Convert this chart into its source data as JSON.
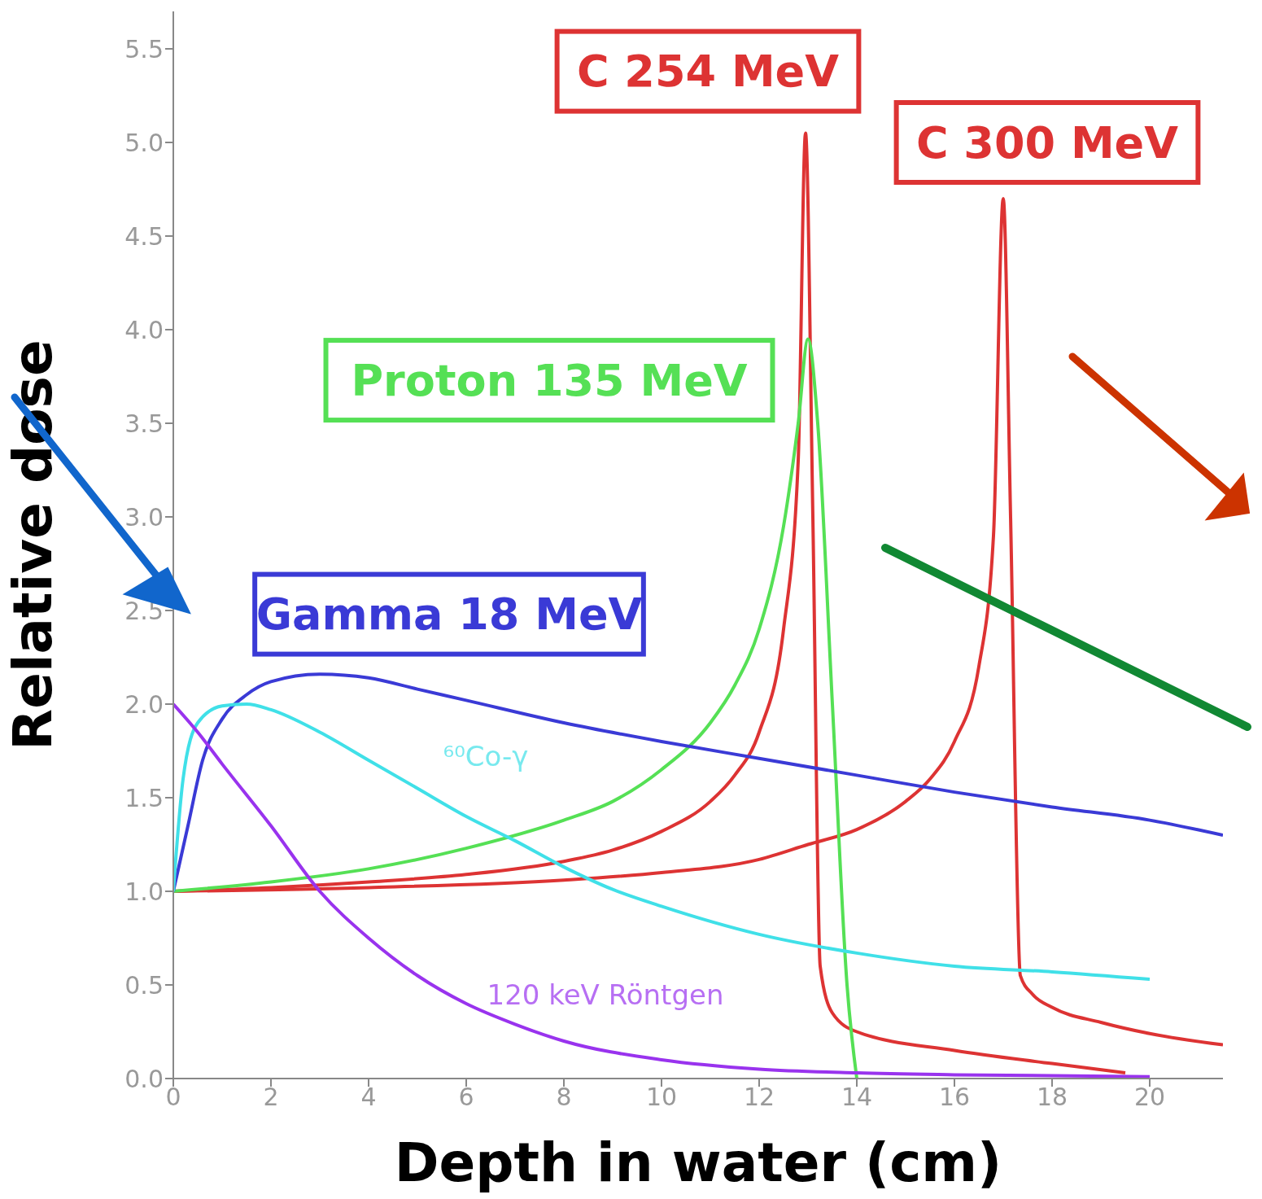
{
  "chart_data": {
    "type": "line",
    "xlabel": "Depth in water (cm)",
    "ylabel": "Relative dose",
    "xlim": [
      0,
      21.5
    ],
    "xticks": [
      0,
      2,
      4,
      6,
      8,
      10,
      12,
      14,
      16,
      18,
      20
    ],
    "ylim": [
      0,
      5.7
    ],
    "yticks": [
      {
        "value": 0,
        "label": "0.0"
      },
      {
        "value": 0.5,
        "label": "0.5"
      },
      {
        "value": 1,
        "label": "1.0"
      },
      {
        "value": 1.5,
        "label": "1.5"
      },
      {
        "value": 2,
        "label": "2.0"
      },
      {
        "value": 2.5,
        "label": "2.5"
      },
      {
        "value": 3,
        "label": "3.0"
      },
      {
        "value": 3.5,
        "label": "3.5"
      },
      {
        "value": 4,
        "label": "4.0"
      },
      {
        "value": 4.5,
        "label": "4.5"
      },
      {
        "value": 5,
        "label": "5.0"
      },
      {
        "value": 5.5,
        "label": "5.5"
      }
    ],
    "grid": false,
    "legend": false,
    "marker": "none",
    "line_style": "solid",
    "series": [
      {
        "name": "C 254 MeV",
        "color": "#dd3333",
        "x": [
          0,
          2,
          4,
          6,
          8,
          9,
          10,
          11,
          11.5,
          12,
          12.5,
          12.8,
          12.95,
          13.1,
          13.25,
          13.5,
          14,
          16,
          18,
          19.5
        ],
        "values": [
          1.0,
          1.02,
          1.05,
          1.09,
          1.16,
          1.22,
          1.32,
          1.48,
          1.62,
          1.85,
          2.4,
          3.3,
          5.05,
          3.0,
          0.6,
          0.35,
          0.25,
          0.15,
          0.08,
          0.03
        ]
      },
      {
        "name": "C 300 MeV",
        "color": "#dd3333",
        "x": [
          0,
          4,
          8,
          10,
          12,
          13,
          14,
          15,
          15.5,
          16,
          16.5,
          16.8,
          17,
          17.15,
          17.35,
          17.6,
          18,
          19,
          20,
          21.5
        ],
        "values": [
          1.0,
          1.02,
          1.06,
          1.1,
          1.17,
          1.25,
          1.33,
          1.48,
          1.6,
          1.8,
          2.2,
          2.9,
          4.7,
          3.0,
          0.55,
          0.45,
          0.38,
          0.3,
          0.24,
          0.18
        ]
      },
      {
        "name": "Proton 135 MeV",
        "color": "#55e055",
        "x": [
          0,
          2,
          4,
          6,
          8,
          9,
          10,
          11,
          11.5,
          12,
          12.5,
          12.8,
          13,
          13.2,
          13.5,
          13.8,
          14
        ],
        "values": [
          1.0,
          1.05,
          1.12,
          1.23,
          1.38,
          1.48,
          1.65,
          1.9,
          2.1,
          2.4,
          2.95,
          3.5,
          3.95,
          3.5,
          2.0,
          0.5,
          0.0
        ]
      },
      {
        "name": "Gamma 18 MeV",
        "color": "#3a3ad6",
        "x": [
          0,
          0.3,
          0.6,
          1,
          1.5,
          2,
          3,
          4,
          5,
          6,
          8,
          10,
          12,
          14,
          16,
          18,
          20,
          21.5
        ],
        "values": [
          1.0,
          1.35,
          1.7,
          1.92,
          2.05,
          2.12,
          2.16,
          2.14,
          2.08,
          2.02,
          1.9,
          1.8,
          1.71,
          1.62,
          1.53,
          1.45,
          1.38,
          1.3
        ]
      },
      {
        "name": "⁶⁰Co-γ",
        "color": "#40e0e8",
        "x": [
          0,
          0.2,
          0.5,
          1,
          1.5,
          2,
          3,
          4,
          5,
          6,
          7,
          8,
          9,
          10,
          12,
          14,
          16,
          18,
          20
        ],
        "values": [
          1.0,
          1.6,
          1.9,
          1.99,
          2.0,
          1.97,
          1.85,
          1.7,
          1.55,
          1.4,
          1.27,
          1.13,
          1.01,
          0.92,
          0.77,
          0.67,
          0.6,
          0.57,
          0.53
        ]
      },
      {
        "name": "120 keV Röntgen",
        "color": "#9933ee",
        "x": [
          0,
          0.5,
          1,
          2,
          3,
          4,
          5,
          6,
          7,
          8,
          10,
          12,
          14,
          16,
          20
        ],
        "values": [
          2.0,
          1.85,
          1.68,
          1.35,
          1.0,
          0.75,
          0.55,
          0.4,
          0.29,
          0.2,
          0.1,
          0.05,
          0.03,
          0.02,
          0.01
        ]
      }
    ]
  }
}
